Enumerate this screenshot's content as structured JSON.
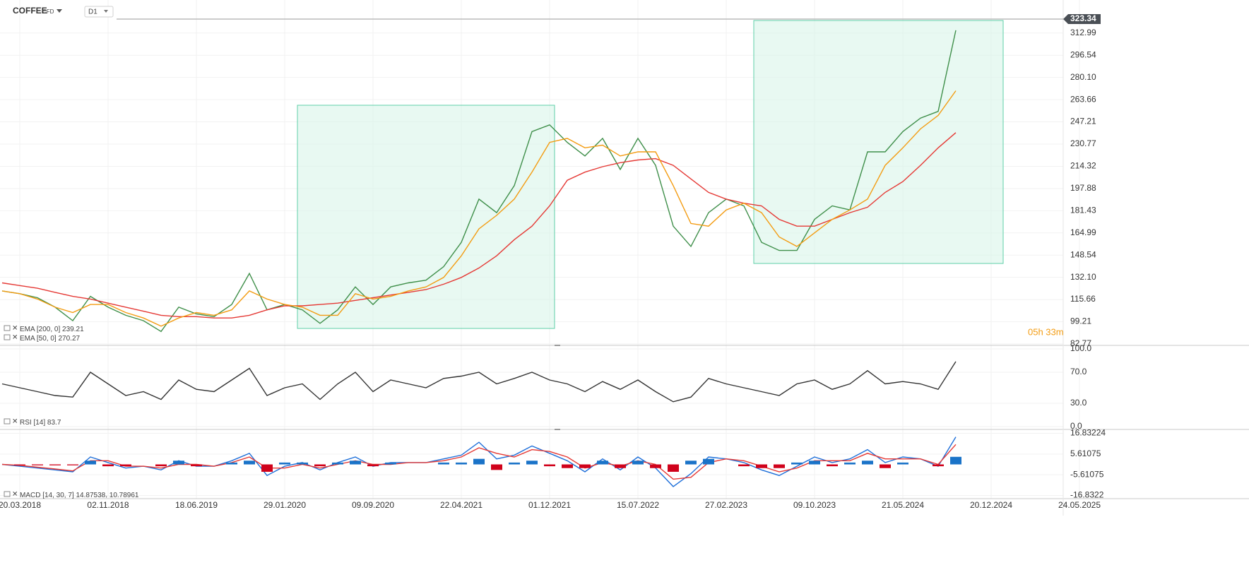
{
  "header": {
    "instrument": "CFD",
    "timeframe": "D1",
    "timer": "05h 33m"
  },
  "chart_data": [
    {
      "type": "line",
      "categories": [
        null,
        "20.03.2018",
        null,
        null,
        null,
        null,
        "02.11.2018",
        null,
        null,
        null,
        null,
        "18.06.2019",
        null,
        null,
        null,
        null,
        "29.01.2020",
        null,
        null,
        null,
        null,
        "09.09.2020",
        null,
        null,
        null,
        null,
        "22.04.2021",
        null,
        null,
        null,
        null,
        "01.12.2021",
        null,
        null,
        null,
        null,
        "15.07.2022",
        null,
        null,
        null,
        null,
        "27.02.2023",
        null,
        null,
        null,
        null,
        "09.10.2023",
        null,
        null,
        null,
        null,
        "21.05.2024",
        null,
        null,
        null,
        null,
        "20.12.2024",
        null,
        null,
        null,
        null,
        "24.05.2025"
      ],
      "series": [
        {
          "name": "COFFEE",
          "color": "#3f8f4a",
          "values": [
            122,
            120,
            117,
            110,
            100,
            118,
            110,
            104,
            100,
            92,
            110,
            105,
            103,
            112,
            135,
            108,
            112,
            108,
            98,
            108,
            125,
            112,
            125,
            128,
            130,
            140,
            158,
            190,
            180,
            200,
            240,
            245,
            232,
            222,
            235,
            212,
            235,
            215,
            170,
            155,
            180,
            190,
            185,
            158,
            152,
            152,
            175,
            185,
            182,
            225,
            225,
            240,
            250,
            255,
            315,
            null,
            null,
            null,
            null,
            null,
            null,
            null
          ]
        },
        {
          "name": "EMA [200, 0]",
          "color": "#e53935",
          "values": [
            128,
            126,
            124,
            121,
            118,
            116,
            113,
            110,
            107,
            104,
            103,
            103,
            102,
            102,
            104,
            108,
            111,
            111,
            112,
            113,
            115,
            117,
            119,
            121,
            123,
            127,
            132,
            139,
            148,
            160,
            170,
            185,
            204,
            210,
            214,
            217,
            219,
            220,
            215,
            205,
            195,
            190,
            187,
            185,
            175,
            170,
            170,
            175,
            180,
            184,
            195,
            203,
            215,
            228,
            239.21,
            null,
            null,
            null,
            null,
            null,
            null,
            null
          ]
        },
        {
          "name": "EMA [50, 0]",
          "color": "#f39c12",
          "values": [
            122,
            120,
            116,
            110,
            106,
            112,
            112,
            106,
            102,
            96,
            102,
            106,
            104,
            108,
            122,
            116,
            112,
            110,
            104,
            104,
            120,
            116,
            118,
            122,
            125,
            132,
            148,
            168,
            178,
            190,
            210,
            232,
            235,
            228,
            230,
            222,
            225,
            225,
            200,
            172,
            170,
            182,
            187,
            180,
            162,
            155,
            165,
            175,
            182,
            190,
            215,
            228,
            242,
            252,
            270.27,
            null,
            null,
            null,
            null,
            null,
            null,
            null
          ]
        }
      ],
      "last_price": 323.34,
      "ylim": [
        81.7,
        327.0
      ],
      "yticks": [
        82.77,
        99.21,
        115.66,
        {
          "value": 132.1,
          "label": "132.10"
        },
        148.54,
        164.99,
        181.43,
        197.88,
        214.32,
        230.77,
        247.21,
        263.66,
        {
          "value": 280.1,
          "label": "280.10"
        },
        296.54,
        312.99
      ],
      "grid": true
    },
    {
      "type": "line",
      "series": [
        {
          "name": "RSI [14]",
          "color": "#333333",
          "values": [
            55,
            50,
            45,
            40,
            38,
            70,
            55,
            40,
            45,
            35,
            60,
            48,
            45,
            60,
            75,
            40,
            50,
            55,
            35,
            55,
            70,
            45,
            60,
            55,
            50,
            62,
            65,
            70,
            55,
            62,
            70,
            60,
            55,
            45,
            58,
            48,
            60,
            45,
            32,
            38,
            62,
            55,
            50,
            45,
            40,
            55,
            60,
            48,
            55,
            72,
            55,
            58,
            55,
            48,
            83.7,
            null,
            null,
            null,
            null,
            null,
            null,
            null
          ]
        }
      ],
      "ylim": [
        0,
        100
      ],
      "yticks": [
        {
          "value": 0,
          "label": "0.0"
        },
        {
          "value": 30,
          "label": "30.0"
        },
        {
          "value": 70,
          "label": "70.0"
        },
        {
          "value": 100,
          "label": "100.0"
        }
      ],
      "grid": true
    },
    {
      "type": "macd",
      "series": [
        {
          "name": "MACD [14, 30, 7]",
          "color": "#1e6fd9",
          "values": [
            0,
            -1,
            -2,
            -3,
            -4,
            4,
            1,
            -2,
            -1,
            -3,
            2,
            -1,
            -1,
            2,
            6,
            -6,
            -1,
            1,
            -3,
            1,
            4,
            -1,
            1,
            1,
            1,
            3,
            5,
            12,
            3,
            5,
            10,
            6,
            2,
            -4,
            3,
            -3,
            4,
            -2,
            -12,
            -5,
            4,
            3,
            1,
            -3,
            -6,
            -1,
            4,
            1,
            3,
            8,
            1,
            4,
            3,
            -1,
            14.87538,
            null,
            null,
            null,
            null,
            null,
            null,
            null
          ]
        },
        {
          "color": "#e53935",
          "values": [
            0,
            -0.5,
            -1.5,
            -2.5,
            -3.5,
            2,
            2,
            -1,
            -1,
            -2,
            0,
            0,
            -1,
            1,
            4,
            -2,
            -2,
            0,
            -2,
            0,
            2,
            0,
            0,
            1,
            1,
            2,
            4,
            9,
            6,
            4,
            8,
            7,
            4,
            -2,
            1,
            -1,
            2,
            0,
            -8,
            -7,
            1,
            3,
            2,
            -1,
            -4,
            -2,
            2,
            2,
            2,
            6,
            3,
            3,
            3,
            0,
            10.78961,
            null,
            null,
            null,
            null,
            null,
            null,
            null
          ]
        },
        {
          "type": "bar",
          "positive_color": "#1a73c8",
          "negative_color": "#d0021b",
          "values": [
            0,
            -0.5,
            -0.5,
            -0.5,
            -0.5,
            2,
            -1,
            -1,
            0,
            -1,
            2,
            -1,
            0,
            1,
            2,
            -4,
            1,
            1,
            -1,
            1,
            2,
            -1,
            1,
            0,
            0,
            1,
            1,
            3,
            -3,
            1,
            2,
            -1,
            -2,
            -2,
            2,
            -2,
            2,
            -2,
            -4,
            2,
            3,
            0,
            -1,
            -2,
            -2,
            1,
            2,
            -1,
            1,
            2,
            -2,
            1,
            0,
            -1,
            4.1,
            null,
            null,
            null,
            null,
            null,
            null,
            null
          ]
        }
      ],
      "ylim": [
        -18.55,
        18.55
      ],
      "yticks": [
        {
          "value": -16.83224,
          "label": "-16.8322"
        },
        -5.61075,
        5.61075,
        16.83224
      ],
      "grid": true
    }
  ]
}
